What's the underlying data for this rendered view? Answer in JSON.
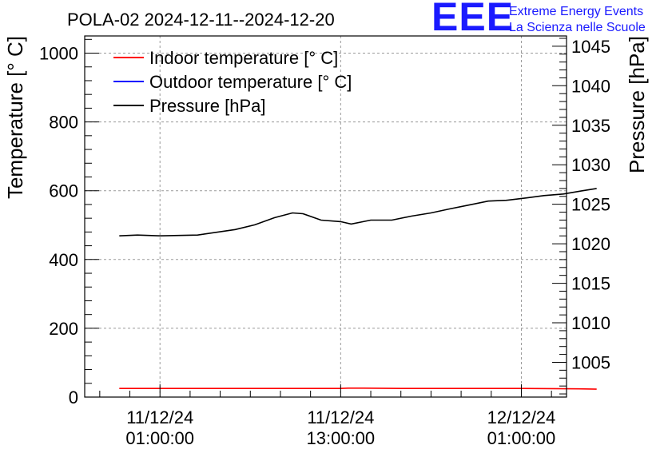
{
  "chart_data": {
    "type": "line",
    "title": "POLA-02 2024-12-11--2024-12-20",
    "ylabel_left": "Temperature [° C]",
    "ylabel_right": "Pressure [hPa]",
    "xlabel": "",
    "grid": true,
    "legend_position": "top-left",
    "ylim_left": [
      0,
      1050
    ],
    "ylim_right": [
      1000.6,
      1046.3
    ],
    "xlim_hours": [
      -5.0,
      27.0
    ],
    "left_ticks": [
      "0",
      "200",
      "400",
      "600",
      "800",
      "1000"
    ],
    "right_ticks": [
      "1005",
      "1010",
      "1015",
      "1020",
      "1025",
      "1030",
      "1035",
      "1040",
      "1045"
    ],
    "x_tick_labels": [
      {
        "date": "11/12/24",
        "time": "01:00:00"
      },
      {
        "date": "11/12/24",
        "time": "13:00:00"
      },
      {
        "date": "12/12/24",
        "time": "01:00:00"
      }
    ],
    "series": [
      {
        "name": "Indoor temperature [° C]",
        "axis": "left",
        "color": "#ff0000",
        "x": [
          -2.7,
          0,
          4,
          8,
          12,
          12.5,
          13.5,
          16,
          20,
          24,
          27.8,
          29.0
        ],
        "values": [
          25,
          25,
          25,
          25,
          25,
          26,
          26,
          25,
          25,
          25,
          24,
          23
        ]
      },
      {
        "name": "Outdoor temperature [° C]",
        "axis": "left",
        "color": "#0000ff",
        "x": [],
        "values": []
      },
      {
        "name": "Pressure [hPa]",
        "axis": "right",
        "color": "#000000",
        "x": [
          -2.7,
          -1.5,
          0,
          2.5,
          5,
          6.3,
          7.6,
          8.8,
          9.5,
          10.7,
          12,
          12.7,
          14,
          15.4,
          16.7,
          18,
          19.2,
          20.5,
          21.8,
          23.0,
          24.3,
          25.5,
          26.8,
          28.0,
          29.0
        ],
        "values": [
          1021.0,
          1021.1,
          1021.0,
          1021.1,
          1021.8,
          1022.4,
          1023.3,
          1023.9,
          1023.8,
          1023.0,
          1022.8,
          1022.5,
          1023.0,
          1023.0,
          1023.5,
          1023.9,
          1024.4,
          1024.9,
          1025.4,
          1025.5,
          1025.8,
          1026.1,
          1026.3,
          1026.7,
          1027.0
        ]
      }
    ]
  },
  "logo": {
    "letters": "EEE",
    "line1": "Extreme Energy Events",
    "line2": "La Scienza nelle Scuole"
  }
}
